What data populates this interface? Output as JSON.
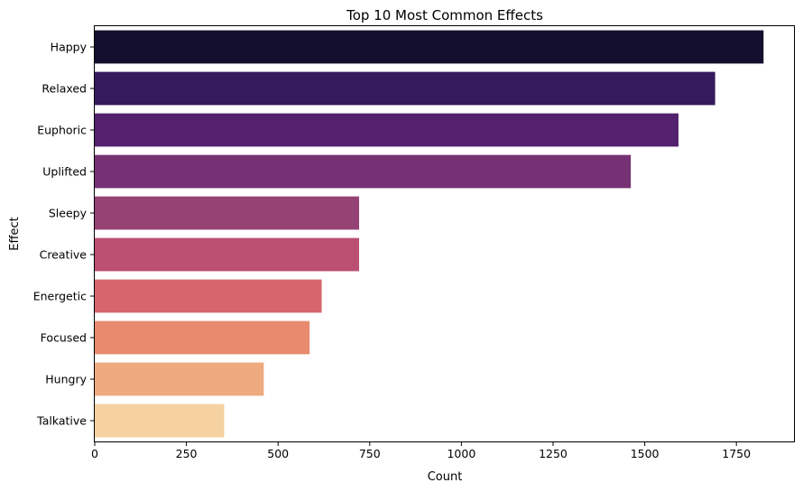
{
  "chart_data": {
    "type": "bar",
    "orientation": "horizontal",
    "title": "Top 10 Most Common Effects",
    "xlabel": "Count",
    "ylabel": "Effect",
    "categories": [
      "Happy",
      "Relaxed",
      "Euphoric",
      "Uplifted",
      "Sleepy",
      "Creative",
      "Energetic",
      "Focused",
      "Hungry",
      "Talkative"
    ],
    "values": [
      1824,
      1692,
      1592,
      1462,
      721,
      721,
      619,
      586,
      461,
      353
    ],
    "xlim": [
      0,
      1907
    ],
    "xticks": [
      0,
      250,
      500,
      750,
      1000,
      1250,
      1500,
      1750
    ],
    "grid": false,
    "legend": "none",
    "colors": [
      "#140f2e",
      "#331b5d",
      "#53216e",
      "#763174",
      "#954275",
      "#bb5073",
      "#d5666e",
      "#e88a6e",
      "#eeaa7e",
      "#f5d2a0"
    ]
  }
}
